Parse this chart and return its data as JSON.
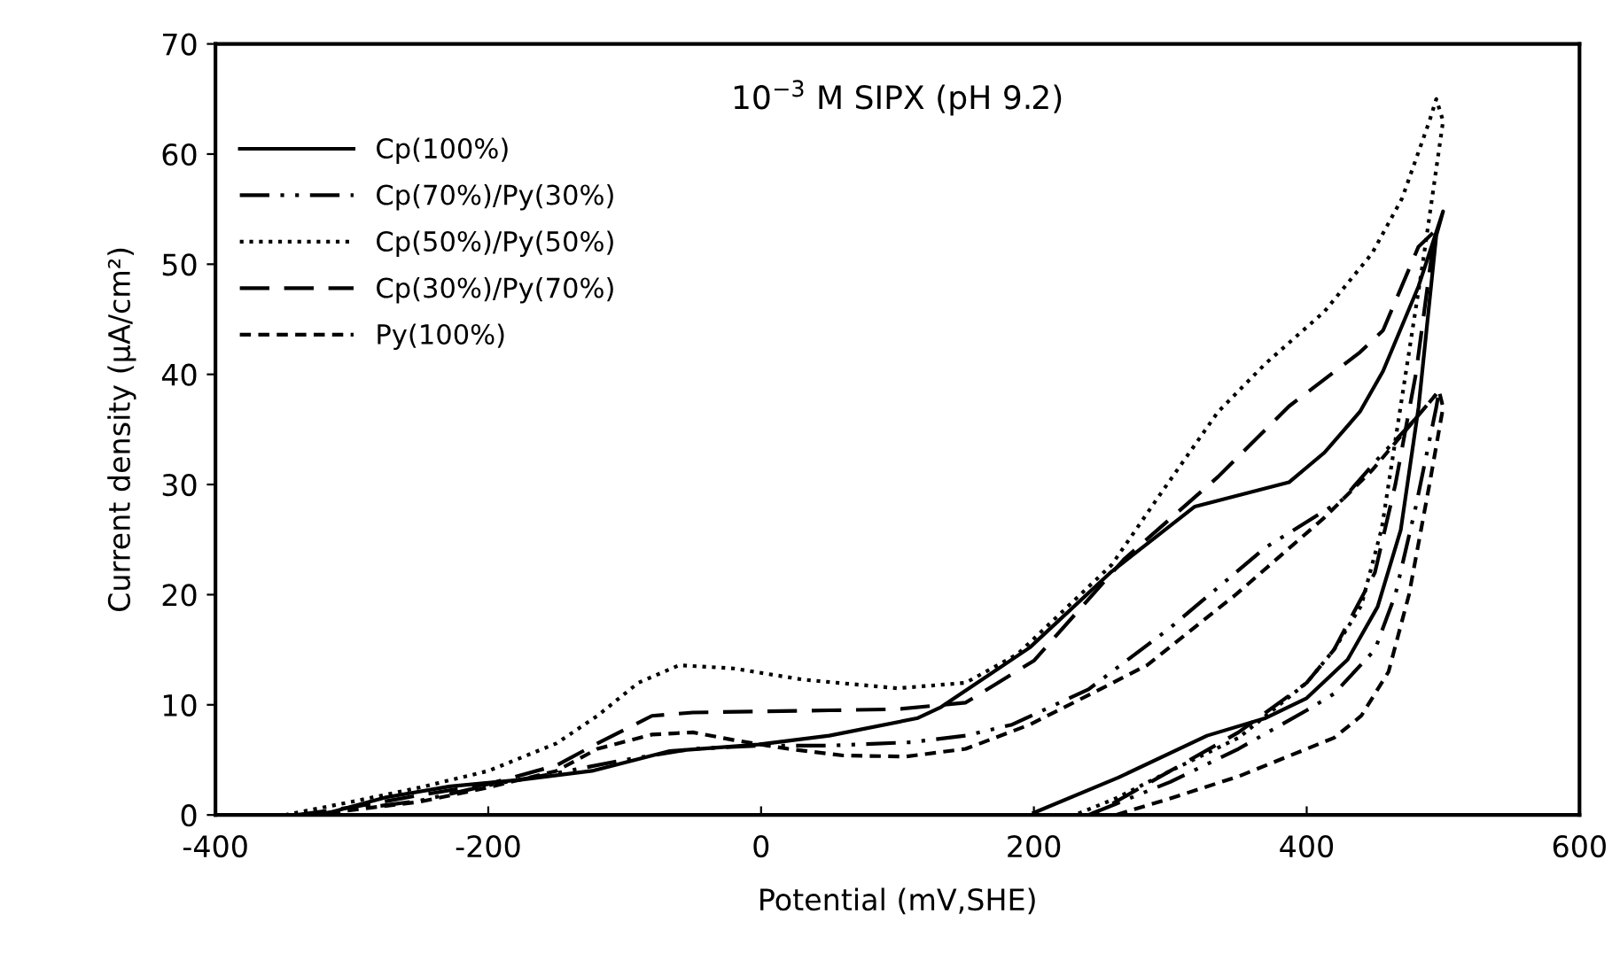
{
  "chart_data": {
    "type": "line",
    "title": "10$^{−3}$ M SIPX (pH 9.2)",
    "xlabel": "Potential (mV,SHE)",
    "ylabel": "Current density (μA/cm²)",
    "xlim": [
      -400,
      600
    ],
    "xticks": [
      -400,
      -200,
      0,
      200,
      400,
      600
    ],
    "ylim": [
      0,
      70
    ],
    "yticks": [
      0,
      10,
      20,
      30,
      40,
      50,
      60,
      70
    ],
    "grid": false,
    "legend": "top left",
    "marker": "none",
    "series": [
      {
        "name": "Cp(100%)",
        "color": "#000000",
        "line_style": "solid",
        "x": [
          -323,
          -275,
          -228,
          -176,
          -124,
          -67,
          -2,
          50,
          115,
          132,
          197,
          257,
          318,
          387,
          413,
          439,
          456,
          482,
          500,
          495,
          482,
          469,
          452,
          430,
          400,
          370,
          327,
          262,
          200
        ],
        "values": [
          0,
          1.6,
          2.6,
          3.2,
          4,
          5.8,
          6.4,
          7.2,
          8.8,
          9.8,
          15.2,
          22.1,
          28,
          30.2,
          32.9,
          36.6,
          40.3,
          48,
          54.8,
          52.6,
          37,
          25.9,
          18.9,
          14.1,
          10.6,
          8.8,
          7.2,
          3.4,
          0.2
        ]
      },
      {
        "name": "Cp(70%)/Py(30%)",
        "color": "#000000",
        "line_style": "dashdotdot",
        "x": [
          -330,
          -250,
          -200,
          -150,
          -100,
          -50,
          0,
          50,
          110,
          150,
          184,
          240,
          300,
          370,
          426,
          452,
          480,
          497,
          495,
          480,
          465,
          450,
          420,
          400,
          350,
          300,
          260,
          240
        ],
        "values": [
          0,
          1.3,
          2.7,
          3.8,
          5,
          6,
          6.3,
          6.3,
          6.6,
          7.2,
          8.2,
          11.4,
          17,
          24.3,
          28.6,
          32.3,
          36,
          38.5,
          37,
          28,
          20,
          15,
          11,
          9.5,
          6,
          3,
          1,
          0
        ]
      },
      {
        "name": "Cp(50%)/Py(50%)",
        "color": "#000000",
        "line_style": "dotted",
        "x": [
          -349,
          -300,
          -250,
          -200,
          -150,
          -120,
          -90,
          -60,
          -20,
          30,
          100,
          150,
          188,
          257,
          292,
          335,
          370,
          413,
          448,
          470,
          490,
          495,
          500,
          485,
          470,
          455,
          440,
          420,
          400,
          350,
          300,
          260,
          230
        ],
        "values": [
          0,
          1.2,
          2.5,
          4,
          6.5,
          9,
          12,
          13.6,
          13.3,
          12.3,
          11.5,
          12,
          14.6,
          22.7,
          29,
          36.6,
          41,
          45.7,
          51,
          56,
          63,
          65,
          63,
          50,
          38,
          26,
          19,
          15,
          12,
          7,
          4,
          1.5,
          0
        ]
      },
      {
        "name": "Cp(30%)/Py(70%)",
        "color": "#000000",
        "line_style": "longdash",
        "x": [
          -340,
          -300,
          -250,
          -200,
          -150,
          -120,
          -80,
          -50,
          0,
          50,
          100,
          150,
          200,
          266,
          335,
          387,
          439,
          456,
          482,
          494,
          480,
          465,
          450,
          420,
          400,
          350,
          300,
          250,
          240
        ],
        "values": [
          0,
          0.7,
          1.8,
          2.8,
          4.5,
          6.5,
          9,
          9.3,
          9.4,
          9.5,
          9.6,
          10.2,
          14,
          23.2,
          30.7,
          37.1,
          42,
          44,
          51.6,
          53,
          40,
          30,
          22,
          15,
          12,
          7.5,
          4,
          0.5,
          0
        ]
      },
      {
        "name": "Py(100%)",
        "color": "#000000",
        "line_style": "dashed",
        "x": [
          -330,
          -250,
          -200,
          -150,
          -120,
          -80,
          -50,
          -20,
          20,
          60,
          106,
          150,
          197,
          250,
          283,
          348,
          413,
          448,
          480,
          497,
          500,
          490,
          475,
          460,
          440,
          420,
          400,
          350,
          300,
          260
        ],
        "values": [
          0,
          1.2,
          2.5,
          4,
          6,
          7.3,
          7.5,
          6.8,
          6,
          5.4,
          5.3,
          6,
          8.2,
          11.5,
          13.6,
          20,
          27,
          31.3,
          36,
          38.5,
          37,
          30,
          20,
          13,
          9,
          7,
          6,
          3.5,
          1.5,
          0
        ]
      }
    ]
  }
}
